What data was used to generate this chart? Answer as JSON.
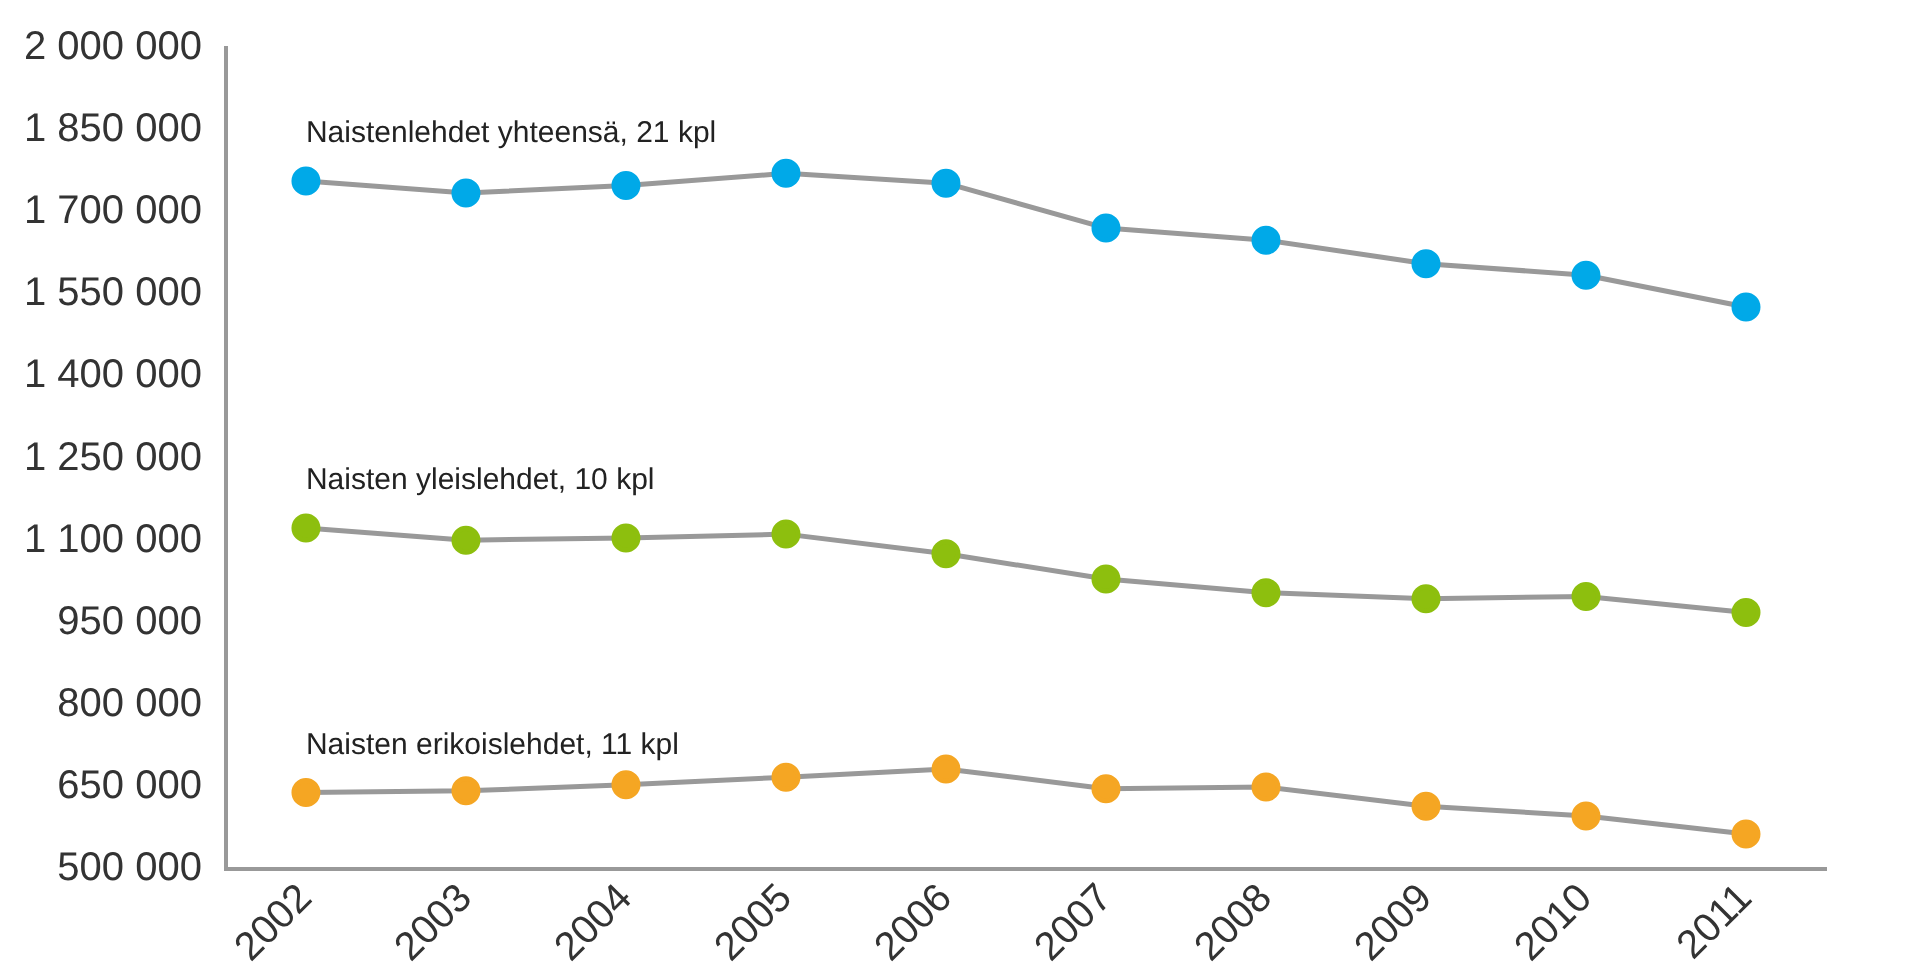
{
  "chart_data": {
    "type": "line",
    "categories": [
      "2002",
      "2003",
      "2004",
      "2005",
      "2006",
      "2007",
      "2008",
      "2009",
      "2010",
      "2011"
    ],
    "series": [
      {
        "name": "Naistenlehdet yhteensä, 21 kpl",
        "color": "#00a9e8",
        "values": [
          1757000,
          1735000,
          1749000,
          1771000,
          1753000,
          1671000,
          1649000,
          1606000,
          1585000,
          1527000
        ]
      },
      {
        "name": "Naisten yleislehdet, 10 kpl",
        "color": "#8dbf0e",
        "values": [
          1123000,
          1101000,
          1105000,
          1112000,
          1076000,
          1030000,
          1005000,
          994000,
          998000,
          969000
        ]
      },
      {
        "name": "Naisten erikoislehdet, 11 kpl",
        "color": "#f5a623",
        "values": [
          640000,
          643000,
          654000,
          668000,
          683000,
          647000,
          650000,
          615000,
          597000,
          564000
        ]
      }
    ],
    "ylim": [
      500000,
      2000000
    ],
    "yticks": [
      {
        "value": 500000,
        "label": "500 000"
      },
      {
        "value": 650000,
        "label": "650 000"
      },
      {
        "value": 800000,
        "label": "800 000"
      },
      {
        "value": 950000,
        "label": "950 000"
      },
      {
        "value": 1100000,
        "label": "1 100 000"
      },
      {
        "value": 1250000,
        "label": "1 250 000"
      },
      {
        "value": 1400000,
        "label": "1 400 000"
      },
      {
        "value": 1550000,
        "label": "1 550 000"
      },
      {
        "value": 1700000,
        "label": "1 700 000"
      },
      {
        "value": 1850000,
        "label": "1 850 000"
      },
      {
        "value": 2000000,
        "label": "2 000 000"
      }
    ],
    "grid": false,
    "legend": false,
    "marker": "circle",
    "line_style": "solid"
  }
}
